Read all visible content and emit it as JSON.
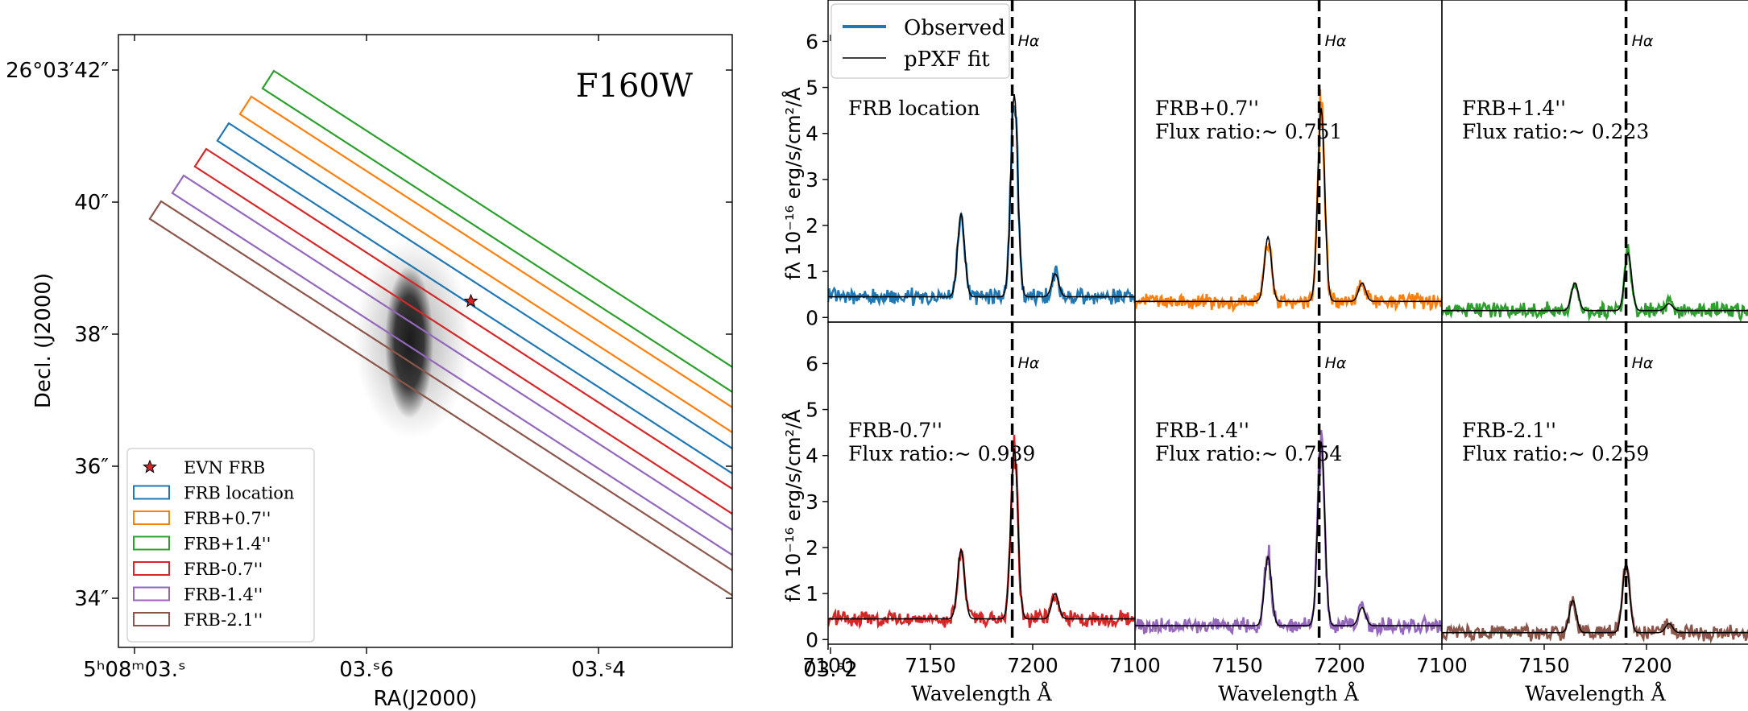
{
  "left_panel": {
    "band_label": "F160W",
    "xlabel": "RA(J2000)",
    "ylabel": "Decl. (J2000)",
    "x_ticks": [
      {
        "ra_s": 3.8,
        "label": "5ʰ08ᵐ03.ˢ"
      },
      {
        "ra_s": 3.6,
        "label": "03.ˢ6"
      },
      {
        "ra_s": 3.4,
        "label": "03.ˢ4"
      },
      {
        "ra_s": 3.2,
        "label": "03.ˢ2"
      }
    ],
    "y_ticks": [
      {
        "dec_s": 42,
        "label": "26°03′42″"
      },
      {
        "dec_s": 40,
        "label": "40″"
      },
      {
        "dec_s": 38,
        "label": "38″"
      },
      {
        "dec_s": 36,
        "label": "36″"
      },
      {
        "dec_s": 34,
        "label": "34″"
      }
    ],
    "legend": [
      {
        "label": "EVN FRB",
        "color": "#d62728",
        "marker": "star"
      },
      {
        "label": "FRB location",
        "color": "#1f77b4",
        "marker": "box"
      },
      {
        "label": "FRB+0.7''",
        "color": "#ff7f0e",
        "marker": "box"
      },
      {
        "label": "FRB+1.4''",
        "color": "#2ca02c",
        "marker": "box"
      },
      {
        "label": "FRB-0.7''",
        "color": "#d62728",
        "marker": "box"
      },
      {
        "label": "FRB-1.4''",
        "color": "#9467bd",
        "marker": "box"
      },
      {
        "label": "FRB-2.1''",
        "color": "#8c564b",
        "marker": "box"
      }
    ]
  },
  "spectra_panel": {
    "xlabel": "Wavelength Å",
    "ylabel": "fλ 10⁻¹⁶ erg/s/cm²/Å",
    "line_label": "Hα",
    "legend": [
      {
        "label": "Observed",
        "color": "#1f77b4"
      },
      {
        "label": "pPXF fit",
        "color": "#000000"
      }
    ]
  },
  "chart_data": [
    {
      "type": "scatter",
      "title": "F160W",
      "xlabel": "RA(J2000)",
      "ylabel": "Decl. (J2000)",
      "source": {
        "name": "EVN FRB",
        "ra_s": 3.51,
        "dec_s": 38.5
      }
    },
    {
      "type": "line",
      "xlabel": "Wavelength Å",
      "ylabel": "fλ 10⁻¹⁶ erg/s/cm²/Å",
      "xlim": [
        7100,
        7250
      ],
      "ylim": [
        -0.1,
        6.9
      ],
      "x_ticks": [
        7100,
        7150,
        7200
      ],
      "y_ticks": [
        0,
        1,
        2,
        3,
        4,
        5,
        6
      ],
      "halpha_line": 7190,
      "panels": [
        {
          "name": "FRB location",
          "flux_ratio": null,
          "color": "#1f77b4",
          "continuum": 0.45,
          "peaks": [
            {
              "x": 7191,
              "h": 4.4
            },
            {
              "x": 7165,
              "h": 1.8
            },
            {
              "x": 7211,
              "h": 0.5
            }
          ]
        },
        {
          "name": "FRB+0.7''",
          "flux_ratio": "0.751",
          "color": "#ff7f0e",
          "continuum": 0.35,
          "peaks": [
            {
              "x": 7191,
              "h": 4.2
            },
            {
              "x": 7165,
              "h": 1.4
            },
            {
              "x": 7211,
              "h": 0.4
            }
          ]
        },
        {
          "name": "FRB+1.4''",
          "flux_ratio": "0.223",
          "color": "#2ca02c",
          "continuum": 0.15,
          "peaks": [
            {
              "x": 7191,
              "h": 1.25
            },
            {
              "x": 7165,
              "h": 0.6
            },
            {
              "x": 7211,
              "h": 0.15
            }
          ]
        },
        {
          "name": "FRB-0.7''",
          "flux_ratio": "0.939",
          "color": "#d62728",
          "continuum": 0.45,
          "peaks": [
            {
              "x": 7191,
              "h": 3.7
            },
            {
              "x": 7165,
              "h": 1.5
            },
            {
              "x": 7211,
              "h": 0.55
            }
          ]
        },
        {
          "name": "FRB-1.4''",
          "flux_ratio": "0.754",
          "color": "#9467bd",
          "continuum": 0.3,
          "peaks": [
            {
              "x": 7191,
              "h": 4.0
            },
            {
              "x": 7165,
              "h": 1.5
            },
            {
              "x": 7211,
              "h": 0.4
            }
          ]
        },
        {
          "name": "FRB-2.1''",
          "flux_ratio": "0.259",
          "color": "#8c564b",
          "continuum": 0.15,
          "peaks": [
            {
              "x": 7190,
              "h": 1.5
            },
            {
              "x": 7164,
              "h": 0.7
            },
            {
              "x": 7211,
              "h": 0.2
            }
          ]
        }
      ]
    }
  ]
}
